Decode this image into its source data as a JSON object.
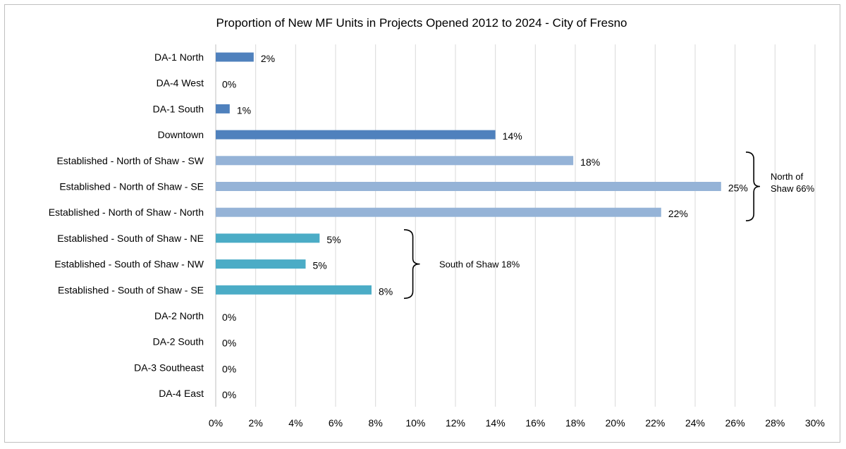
{
  "chart_data": {
    "type": "bar",
    "orientation": "horizontal",
    "title": "Proportion of New MF Units in Projects Opened 2012 to 2024 - City of Fresno",
    "categories": [
      "DA-1 North",
      "DA-4 West",
      "DA-1 South",
      "Downtown",
      "Established - North of Shaw - SW",
      "Established - North of Shaw - SE",
      "Established - North of Shaw - North",
      "Established - South of Shaw - NE",
      "Established - South of Shaw - NW",
      "Established - South of Shaw - SE",
      "DA-2 North",
      "DA-2 South",
      "DA-3 Southeast",
      "DA-4 East"
    ],
    "values": [
      1.9,
      0,
      0.7,
      14.0,
      17.9,
      25.3,
      22.3,
      5.2,
      4.5,
      7.8,
      0,
      0,
      0,
      0
    ],
    "data_labels": [
      "2%",
      "0%",
      "1%",
      "14%",
      "18%",
      "25%",
      "22%",
      "5%",
      "5%",
      "8%",
      "0%",
      "0%",
      "0%",
      "0%"
    ],
    "bar_colors": [
      "#4f81bd",
      "#4f81bd",
      "#4f81bd",
      "#4f81bd",
      "#95b3d7",
      "#95b3d7",
      "#95b3d7",
      "#4bacc6",
      "#4bacc6",
      "#4bacc6",
      "#4f81bd",
      "#4f81bd",
      "#4f81bd",
      "#4f81bd"
    ],
    "xlim": [
      0,
      30
    ],
    "x_ticks": [
      "0%",
      "2%",
      "4%",
      "6%",
      "8%",
      "10%",
      "12%",
      "14%",
      "16%",
      "18%",
      "20%",
      "22%",
      "24%",
      "26%",
      "28%",
      "30%"
    ],
    "xlabel": "",
    "ylabel": "",
    "grid": true,
    "annotations": [
      {
        "text": [
          "North of",
          "Shaw 66%"
        ],
        "from_category": 4,
        "to_category": 6
      },
      {
        "text": [
          "South of Shaw 18%"
        ],
        "from_category": 7,
        "to_category": 9
      }
    ]
  }
}
